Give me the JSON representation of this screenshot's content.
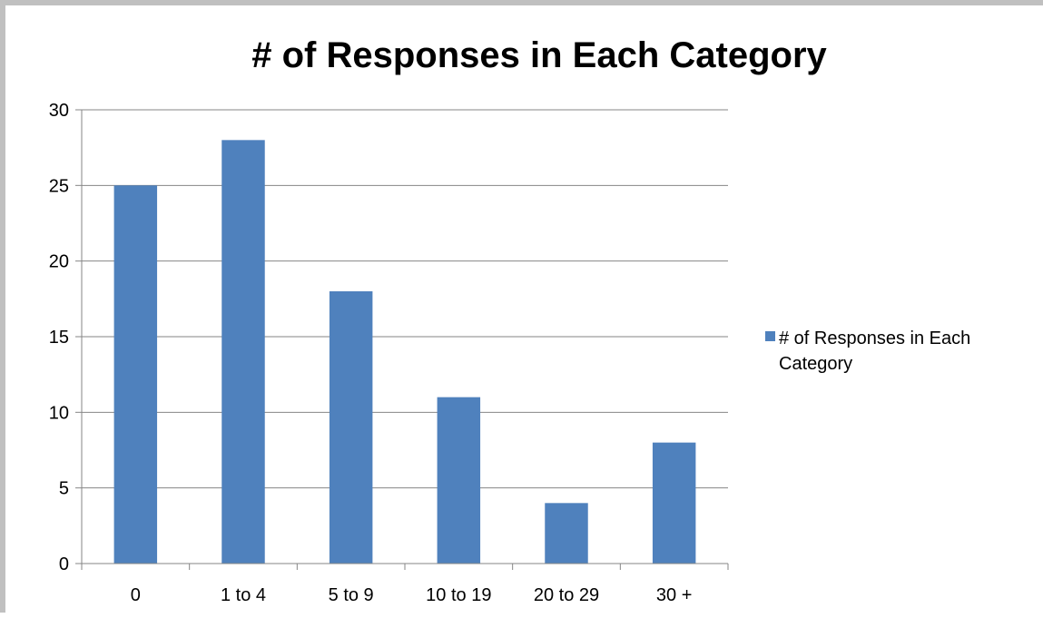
{
  "chart_data": {
    "type": "bar",
    "title": "# of Responses in Each Category",
    "xlabel": "",
    "ylabel": "",
    "categories": [
      "0",
      "1 to 4",
      "5 to 9",
      "10 to 19",
      "20 to 29",
      "30 +"
    ],
    "series": [
      {
        "name": "# of Responses in Each Category",
        "values": [
          25,
          28,
          18,
          11,
          4,
          8
        ]
      }
    ],
    "ylim": [
      0,
      30
    ],
    "yticks": [
      0,
      5,
      10,
      15,
      20,
      25,
      30
    ],
    "grid": true,
    "legend": "right",
    "legend_lines": [
      "# of Responses in Each",
      "Category"
    ],
    "colors": {
      "bar": "#4f81bd",
      "grid": "#868686",
      "axis": "#868686"
    }
  }
}
